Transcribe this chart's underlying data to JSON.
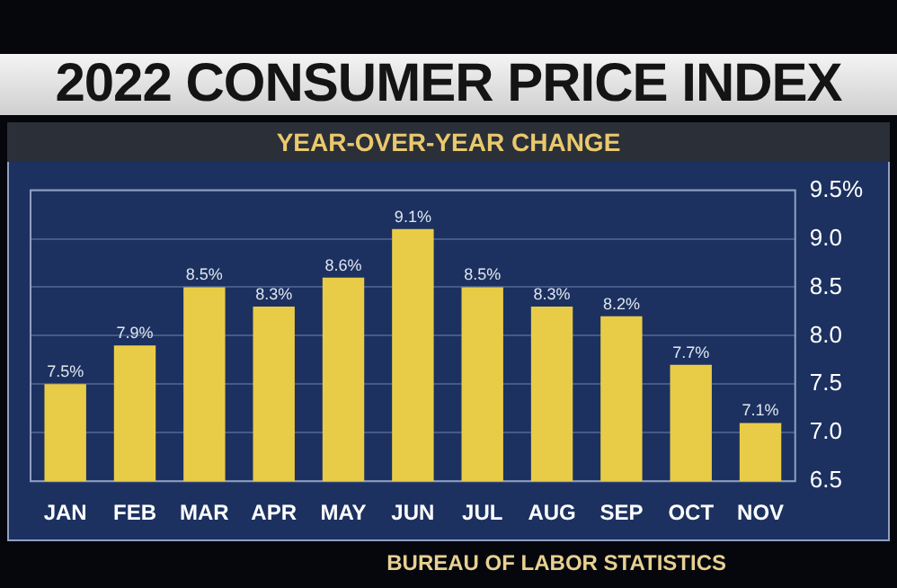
{
  "chart_data": {
    "type": "bar",
    "title": "2022 CONSUMER PRICE INDEX",
    "subtitle": "YEAR-OVER-YEAR CHANGE",
    "categories": [
      "JAN",
      "FEB",
      "MAR",
      "APR",
      "MAY",
      "JUN",
      "JUL",
      "AUG",
      "SEP",
      "OCT",
      "NOV"
    ],
    "values": [
      7.5,
      7.9,
      8.5,
      8.3,
      8.6,
      9.1,
      8.5,
      8.3,
      8.2,
      7.7,
      7.1
    ],
    "color": "#e8cc48",
    "value_labels": [
      "7.5%",
      "7.9%",
      "8.5%",
      "8.3%",
      "8.6%",
      "9.1%",
      "8.5%",
      "8.3%",
      "8.2%",
      "7.7%",
      "7.1%"
    ],
    "ylim": [
      6.5,
      9.5
    ],
    "yticks": [
      {
        "value": 6.5,
        "label": "6.5"
      },
      {
        "value": 7.0,
        "label": "7.0"
      },
      {
        "value": 7.5,
        "label": "7.5"
      },
      {
        "value": 8.0,
        "label": "8.0"
      },
      {
        "value": 8.5,
        "label": "8.5"
      },
      {
        "value": 9.0,
        "label": "9.0"
      },
      {
        "value": 9.5,
        "label": "9.5%"
      }
    ],
    "grid": "y",
    "annotations": [
      "BUREAU OF LABOR STATISTICS"
    ]
  }
}
